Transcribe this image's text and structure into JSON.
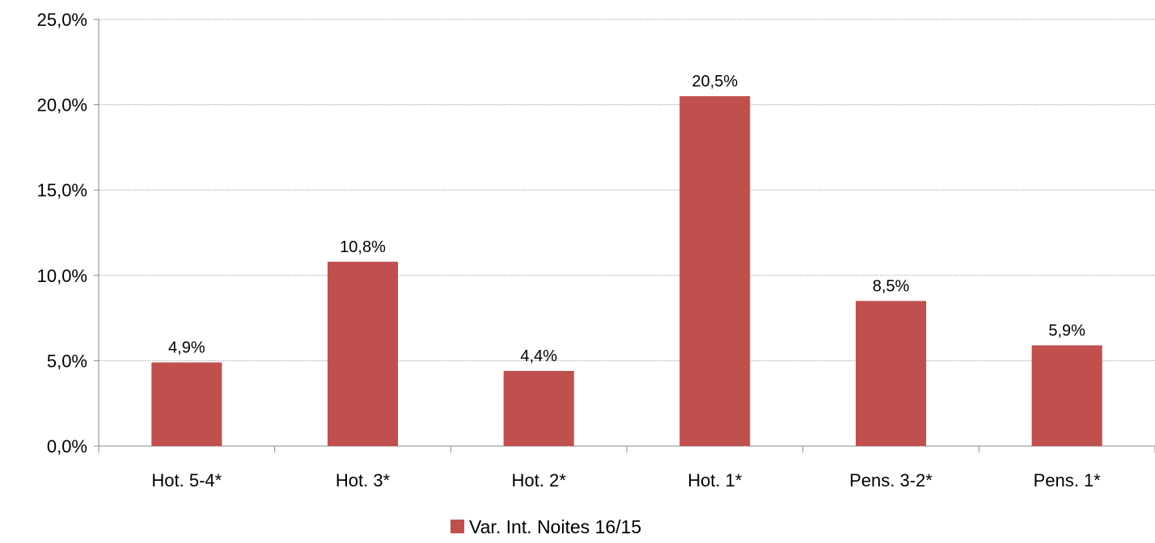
{
  "chart_data": {
    "type": "bar",
    "title": "",
    "xlabel": "",
    "ylabel": "",
    "categories": [
      "Hot. 5-4*",
      "Hot. 3*",
      "Hot. 2*",
      "Hot. 1*",
      "Pens. 3-2*",
      "Pens. 1*"
    ],
    "series": [
      {
        "name": "Var. Int. Noites 16/15",
        "values": [
          4.9,
          10.8,
          4.4,
          20.5,
          8.5,
          5.9
        ],
        "labels": [
          "4,9%",
          "10,8%",
          "4,4%",
          "20,5%",
          "8,5%",
          "5,9%"
        ],
        "color": "#C0504D"
      }
    ],
    "ylim": [
      0,
      25
    ],
    "yticks": [
      0,
      5,
      10,
      15,
      20,
      25
    ],
    "ytick_labels": [
      "0,0%",
      "5,0%",
      "10,0%",
      "15,0%",
      "20,0%",
      "25,0%"
    ],
    "grid": true,
    "grid_style": "dotted",
    "legend": {
      "position": "bottom",
      "entries": [
        "Var. Int. Noites 16/15"
      ]
    }
  },
  "colors": {
    "bar": "#C0504D",
    "grid": "#A0A0A0",
    "axis": "#888888"
  }
}
